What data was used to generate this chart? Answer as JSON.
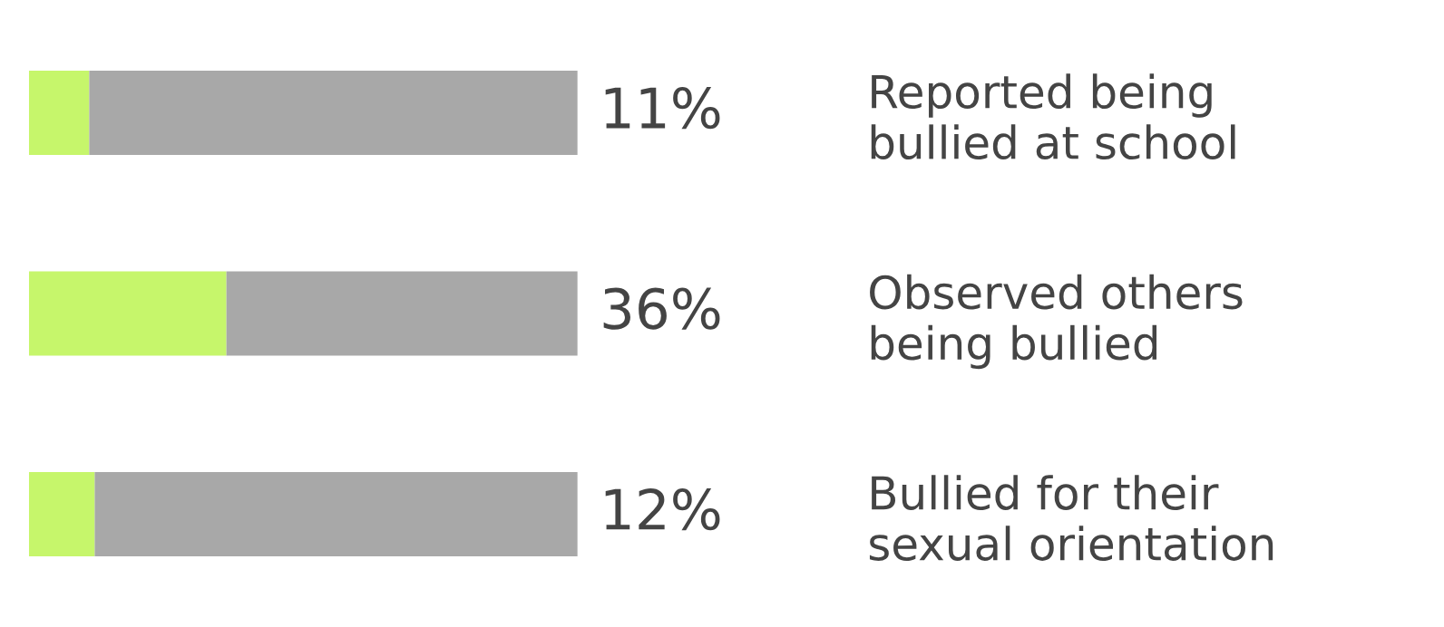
{
  "chart_data": {
    "type": "bar",
    "orientation": "horizontal",
    "stacked": true,
    "categories": [
      "Reported being\nbullied at school",
      "Observed others\nbeing bullied",
      "Bullied for their\nsexual orientation"
    ],
    "series": [
      {
        "color": "#c6f66b",
        "values": [
          11,
          36,
          12
        ],
        "value_labels": [
          "11%",
          "36%",
          "12%"
        ]
      },
      {
        "color": "#a8a8a8",
        "values": [
          89,
          64,
          88
        ],
        "value_labels": [
          null,
          null,
          null
        ]
      }
    ],
    "xlim": [
      0,
      100
    ],
    "tick_labels": "y",
    "grid": false,
    "legend": false
  }
}
